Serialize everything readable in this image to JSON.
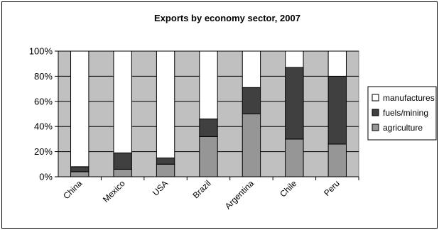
{
  "chart_data": {
    "type": "bar",
    "stacked": true,
    "stack_mode": "percent",
    "title": "Exports by economy sector, 2007",
    "xlabel": "",
    "ylabel": "",
    "categories": [
      "China",
      "Mexico",
      "USA",
      "Brazil",
      "Argentina",
      "Chile",
      "Peru"
    ],
    "y_ticks": [
      "0%",
      "20%",
      "40%",
      "60%",
      "80%",
      "100%"
    ],
    "ylim": [
      0,
      100
    ],
    "grid": true,
    "legend_position": "right",
    "series": [
      {
        "name": "agriculture",
        "color": "#969696",
        "values": [
          4,
          6,
          10,
          32,
          50,
          30,
          26
        ]
      },
      {
        "name": "fuels/mining",
        "color": "#404040",
        "values": [
          4,
          13,
          5,
          14,
          21,
          57,
          54
        ]
      },
      {
        "name": "manufactures",
        "color": "#ffffff",
        "values": [
          92,
          81,
          85,
          54,
          29,
          13,
          20
        ]
      }
    ],
    "legend_order": [
      "manufactures",
      "fuels/mining",
      "agriculture"
    ],
    "plot_background": "#c0c0c0"
  }
}
